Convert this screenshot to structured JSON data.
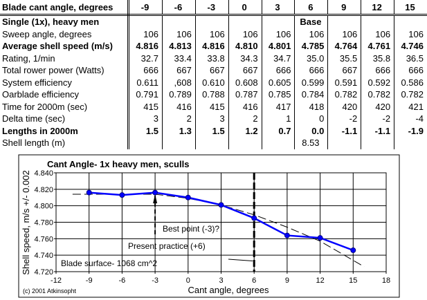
{
  "table": {
    "header": {
      "label": "Blade cant angle, degrees",
      "angles": [
        "-9",
        "-6",
        "-3",
        "0",
        "3",
        "6",
        "9",
        "12",
        "15"
      ]
    },
    "rows": [
      {
        "label": "Single (1x), heavy men",
        "bold": true,
        "values": [
          "",
          "",
          "",
          "",
          "",
          "Base",
          "",
          "",
          ""
        ]
      },
      {
        "label": "Sweep angle, degrees",
        "bold": false,
        "values": [
          "106",
          "106",
          "106",
          "106",
          "106",
          "106",
          "106",
          "106",
          "106"
        ]
      },
      {
        "label": "Average shell speed (m/s)",
        "bold": true,
        "values": [
          "4.816",
          "4.813",
          "4.816",
          "4.810",
          "4.801",
          "4.785",
          "4.764",
          "4.761",
          "4.746"
        ]
      },
      {
        "label": "Rating, 1/min",
        "bold": false,
        "values": [
          "32.7",
          "33.4",
          "33.8",
          "34.3",
          "34.7",
          "35.0",
          "35.5",
          "35.8",
          "36.5"
        ]
      },
      {
        "label": "Total rower power (Watts)",
        "bold": false,
        "values": [
          "666",
          "667",
          "667",
          "667",
          "666",
          "666",
          "667",
          "666",
          "666"
        ]
      },
      {
        "label": "System efficiency",
        "bold": false,
        "values": [
          "0.611",
          ",608",
          "0.610",
          "0.608",
          "0.605",
          "0.599",
          "0.591",
          "0.592",
          "0.586"
        ]
      },
      {
        "label": "Oarblade efficiency",
        "bold": false,
        "values": [
          "0.791",
          "0.789",
          "0.788",
          "0.787",
          "0.785",
          "0.784",
          "0.782",
          "0.782",
          "0.782"
        ]
      },
      {
        "label": "Time for 2000m (sec)",
        "bold": false,
        "values": [
          "415",
          "416",
          "415",
          "416",
          "417",
          "418",
          "420",
          "420",
          "421"
        ]
      },
      {
        "label": "Delta time (sec)",
        "bold": false,
        "values": [
          "3",
          "2",
          "3",
          "2",
          "1",
          "0",
          "-2",
          "-2",
          "-4"
        ]
      },
      {
        "label": "Lengths in 2000m",
        "bold": true,
        "values": [
          "1.5",
          "1.3",
          "1.5",
          "1.2",
          "0.7",
          "0.0",
          "-1.1",
          "-1.1",
          "-1.9"
        ]
      },
      {
        "label": "Shell length (m)",
        "bold": false,
        "values": [
          "",
          "",
          "",
          "",
          "",
          "8.53",
          "",
          "",
          ""
        ]
      }
    ]
  },
  "chart_data": {
    "type": "line",
    "title": "Cant Angle-  1x heavy men, sculls",
    "xlabel": "Cant angle, degrees",
    "ylabel": "Shell speed, m/s +/- 0.002",
    "xlim": [
      -12,
      18
    ],
    "ylim": [
      4.72,
      4.84
    ],
    "xticks": [
      "-12",
      "-9",
      "-6",
      "-3",
      "0",
      "3",
      "6",
      "9",
      "12",
      "15",
      "18"
    ],
    "yticks": [
      "4.720",
      "4.740",
      "4.760",
      "4.780",
      "4.800",
      "4.820",
      "4.840"
    ],
    "grid": true,
    "series": [
      {
        "x": [
          -9,
          -6,
          -3,
          0,
          3,
          6,
          9,
          12,
          15
        ],
        "y": [
          4.816,
          4.813,
          4.816,
          4.81,
          4.801,
          4.785,
          4.764,
          4.761,
          4.746
        ],
        "color": "#0000ff"
      }
    ],
    "trendline": {
      "x": [
        -10.5,
        -6,
        -3,
        0,
        3,
        6,
        9,
        12,
        16
      ],
      "y": [
        4.814,
        4.814,
        4.814,
        4.809,
        4.801,
        4.789,
        4.774,
        4.757,
        4.726
      ]
    },
    "reference_x": 6,
    "annotations": {
      "best": "Best point (-3)?",
      "present": "Present practice (+6)",
      "blade": "Blade surface- 1068 cm^2",
      "copyright": "(c) 2001 Atkinsopht"
    }
  }
}
